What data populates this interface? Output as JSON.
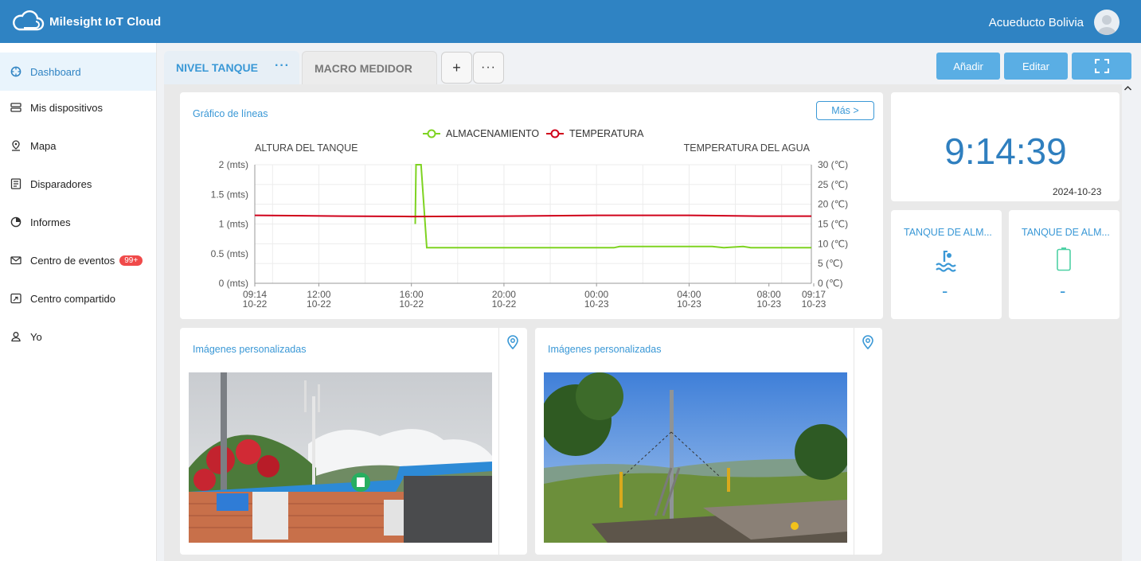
{
  "header": {
    "app_name": "Milesight IoT Cloud",
    "user_name": "Acueducto Bolivia"
  },
  "sidebar": {
    "items": [
      {
        "label": "Dashboard",
        "icon": "dashboard-icon",
        "active": true
      },
      {
        "label": "Mis dispositivos",
        "icon": "devices-icon"
      },
      {
        "label": "Mapa",
        "icon": "map-pin-icon"
      },
      {
        "label": "Disparadores",
        "icon": "trigger-icon"
      },
      {
        "label": "Informes",
        "icon": "report-icon"
      },
      {
        "label": "Centro de eventos",
        "icon": "mail-icon",
        "badge": "99+"
      },
      {
        "label": "Centro compartido",
        "icon": "share-icon"
      },
      {
        "label": "Yo",
        "icon": "user-icon"
      }
    ]
  },
  "tabs": [
    {
      "label": "NIVEL TANQUE",
      "active": true
    },
    {
      "label": "MACRO MEDIDOR",
      "active": false
    }
  ],
  "toolbar": {
    "add_label": "Añadir",
    "edit_label": "Editar",
    "add_tab_symbol": "+",
    "more_symbol": "···",
    "tab_more_symbol": "···"
  },
  "line_chart_card": {
    "title": "Gráfico de líneas",
    "more_label": "Más >"
  },
  "chart_data": {
    "type": "line",
    "title": "",
    "y_left_label": "ALTURA DEL TANQUE",
    "y_right_label": "TEMPERATURA DEL AGUA",
    "y_left_ticks": [
      "2 (mts)",
      "1.5 (mts)",
      "1 (mts)",
      "0.5 (mts)",
      "0 (mts)"
    ],
    "y_right_ticks": [
      "30 (℃)",
      "25 (℃)",
      "20 (℃)",
      "15 (℃)",
      "10 (℃)",
      "5 (℃)",
      "0 (℃)"
    ],
    "y_left_range": [
      0,
      2
    ],
    "y_right_range": [
      0,
      30
    ],
    "x_ticks": [
      {
        "time": "09:14",
        "date": "10-22"
      },
      {
        "time": "12:00",
        "date": "10-22"
      },
      {
        "time": "16:00",
        "date": "10-22"
      },
      {
        "time": "20:00",
        "date": "10-22"
      },
      {
        "time": "00:00",
        "date": "10-23"
      },
      {
        "time": "04:00",
        "date": "10-23"
      },
      {
        "time": "08:00",
        "date": "10-23"
      },
      {
        "time": "09:17",
        "date": "10-23"
      }
    ],
    "x_range": [
      "2024-10-22 09:14",
      "2024-10-23 09:17"
    ],
    "grid": true,
    "legend_position": "top-center",
    "series": [
      {
        "name": "ALMACENAMIENTO",
        "color": "#7ed321",
        "axis": "left",
        "points": [
          [
            "2024-10-22 16:10",
            1.0
          ],
          [
            "2024-10-22 16:12",
            2.0
          ],
          [
            "2024-10-22 16:25",
            2.0
          ],
          [
            "2024-10-22 16:40",
            0.6
          ],
          [
            "2024-10-23 00:45",
            0.6
          ],
          [
            "2024-10-23 01:00",
            0.62
          ],
          [
            "2024-10-23 05:00",
            0.62
          ],
          [
            "2024-10-23 05:30",
            0.6
          ],
          [
            "2024-10-23 06:20",
            0.62
          ],
          [
            "2024-10-23 06:40",
            0.6
          ],
          [
            "2024-10-23 09:17",
            0.6
          ]
        ]
      },
      {
        "name": "TEMPERATURA",
        "color": "#d0021b",
        "axis": "right",
        "points": [
          [
            "2024-10-22 09:14",
            17.2
          ],
          [
            "2024-10-22 13:00",
            17.0
          ],
          [
            "2024-10-22 16:00",
            16.9
          ],
          [
            "2024-10-22 20:00",
            17.0
          ],
          [
            "2024-10-23 00:00",
            17.2
          ],
          [
            "2024-10-23 04:00",
            17.2
          ],
          [
            "2024-10-23 07:00",
            17.0
          ],
          [
            "2024-10-23 09:17",
            17.0
          ]
        ]
      }
    ]
  },
  "clock_widget": {
    "time": "9:14:39",
    "date": "2024-10-23"
  },
  "tank_widgets": [
    {
      "title": "TANQUE DE ALM...",
      "value": "-",
      "icon": "water-level-icon"
    },
    {
      "title": "TANQUE DE ALM...",
      "value": "-",
      "icon": "battery-icon"
    }
  ],
  "image_cards": [
    {
      "title": "Imágenes personalizadas",
      "icon": "location-pin-icon"
    },
    {
      "title": "Imágenes personalizadas",
      "icon": "location-pin-icon"
    }
  ],
  "colors": {
    "header": "#2f83c3",
    "accent": "#3a98d6",
    "button": "#5aaee4",
    "series_storage": "#7ed321",
    "series_temperature": "#d0021b",
    "badge": "#f04a4a"
  }
}
